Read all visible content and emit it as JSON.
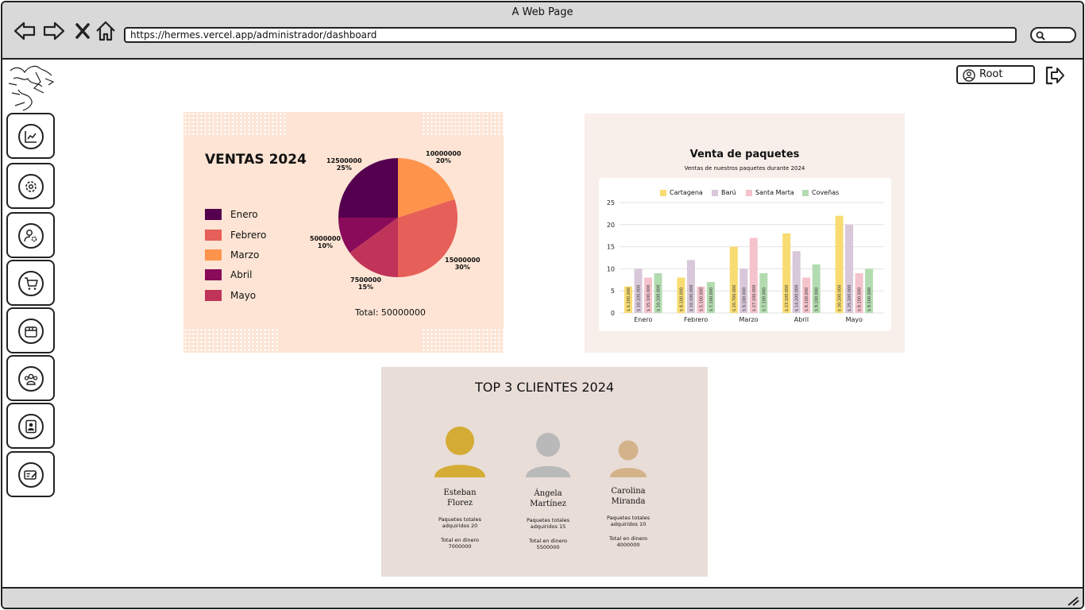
{
  "window": {
    "title": "A Web Page",
    "url": "https://hermes.vercel.app/administrador/dashboard"
  },
  "header": {
    "user_label": "Root"
  },
  "sidebar": {
    "items": [
      {
        "icon": "chart-line-icon"
      },
      {
        "icon": "settings-gear-icon"
      },
      {
        "icon": "user-settings-icon"
      },
      {
        "icon": "cart-icon"
      },
      {
        "icon": "package-icon"
      },
      {
        "icon": "users-group-icon"
      },
      {
        "icon": "contact-card-icon"
      },
      {
        "icon": "id-card-edit-icon"
      }
    ]
  },
  "ventas": {
    "title": "VENTAS 2024",
    "total": "Total: 50000000",
    "legend": [
      {
        "label": "Enero",
        "color": "#55004f"
      },
      {
        "label": "Febrero",
        "color": "#e65f58"
      },
      {
        "label": "Marzo",
        "color": "#fe944c"
      },
      {
        "label": "Abril",
        "color": "#8a0b5a"
      },
      {
        "label": "Mayo",
        "color": "#c1345a"
      }
    ],
    "pie_labels": [
      {
        "value": "12500000",
        "pct": "25%"
      },
      {
        "value": "10000000",
        "pct": "20%"
      },
      {
        "value": "15000000",
        "pct": "30%"
      },
      {
        "value": "7500000",
        "pct": "15%"
      },
      {
        "value": "5000000",
        "pct": "10%"
      }
    ]
  },
  "paquetes": {
    "title": "Venta de paquetes",
    "subtitle": "Ventas de nuestros paquetes durante 2024"
  },
  "top_clientes": {
    "title": "TOP 3 CLIENTES 2024",
    "clients": [
      {
        "name1": "Esteban",
        "name2": "Florez",
        "pkg1": "Paquetes totales",
        "pkg2": "adquiridos 20",
        "tot1": "Total en dinero",
        "tot2": "7000000",
        "color": "#d4ac35"
      },
      {
        "name1": "Ángela",
        "name2": "Martínez",
        "pkg1": "Paquetes totales",
        "pkg2": "adquiridos 15",
        "tot1": "Total en dinero",
        "tot2": "5500000",
        "color": "#b9b9b9"
      },
      {
        "name1": "Carolina",
        "name2": "Miranda",
        "pkg1": "Paquetes totales",
        "pkg2": "adquiridos 10",
        "tot1": "Total en dinero",
        "tot2": "4000000",
        "color": "#d4b38b"
      }
    ]
  },
  "chart_data": [
    {
      "type": "pie",
      "title": "VENTAS 2024",
      "categories": [
        "Enero",
        "Febrero",
        "Marzo",
        "Abril",
        "Mayo"
      ],
      "values": [
        12500000,
        15000000,
        10000000,
        5000000,
        7500000
      ],
      "percentages": [
        25,
        30,
        20,
        10,
        15
      ],
      "colors": [
        "#55004f",
        "#e65f58",
        "#fe944c",
        "#8a0b5a",
        "#c1345a"
      ],
      "total": 50000000,
      "legend_position": "left"
    },
    {
      "type": "bar",
      "title": "Venta de paquetes",
      "subtitle": "Ventas de nuestros paquetes durante 2024",
      "categories": [
        "Enero",
        "Febrero",
        "Marzo",
        "Abril",
        "Mayo"
      ],
      "ylim": [
        0,
        25
      ],
      "yticks": [
        0,
        5,
        10,
        15,
        20,
        25
      ],
      "grid": true,
      "legend_position": "top",
      "series": [
        {
          "name": "Cartagena",
          "color": "#f8dc72",
          "values": [
            6,
            8,
            15,
            18,
            22
          ],
          "labels": [
            "$ 6.200.000",
            "$ 8.100.000",
            "$ 20.700.000",
            "$ 23.100.000",
            "$ 30.200.000"
          ]
        },
        {
          "name": "Barú",
          "color": "#d8c8da",
          "values": [
            10,
            12,
            10,
            14,
            20
          ],
          "labels": [
            "$ 10.100.000",
            "$ 10.100.000",
            "$ 8.100.000",
            "$ 14.200.000",
            "$ 25.200.000"
          ]
        },
        {
          "name": "Santa Marta",
          "color": "#f4c3cc",
          "values": [
            8,
            6,
            17,
            8,
            9
          ],
          "labels": [
            "$ 15.100.000",
            "$ 5.100.000",
            "$ 27.100.000",
            "$ 8.100.000",
            "$ 8.100.000"
          ]
        },
        {
          "name": "Coveñas",
          "color": "#b3dbb0",
          "values": [
            9,
            7,
            9,
            11,
            10
          ],
          "labels": [
            "$ 10.100.000",
            "$ 7.100.000",
            "$ 7.100.000",
            "$ 9.100.000",
            "$ 9.100.000"
          ]
        }
      ]
    }
  ]
}
